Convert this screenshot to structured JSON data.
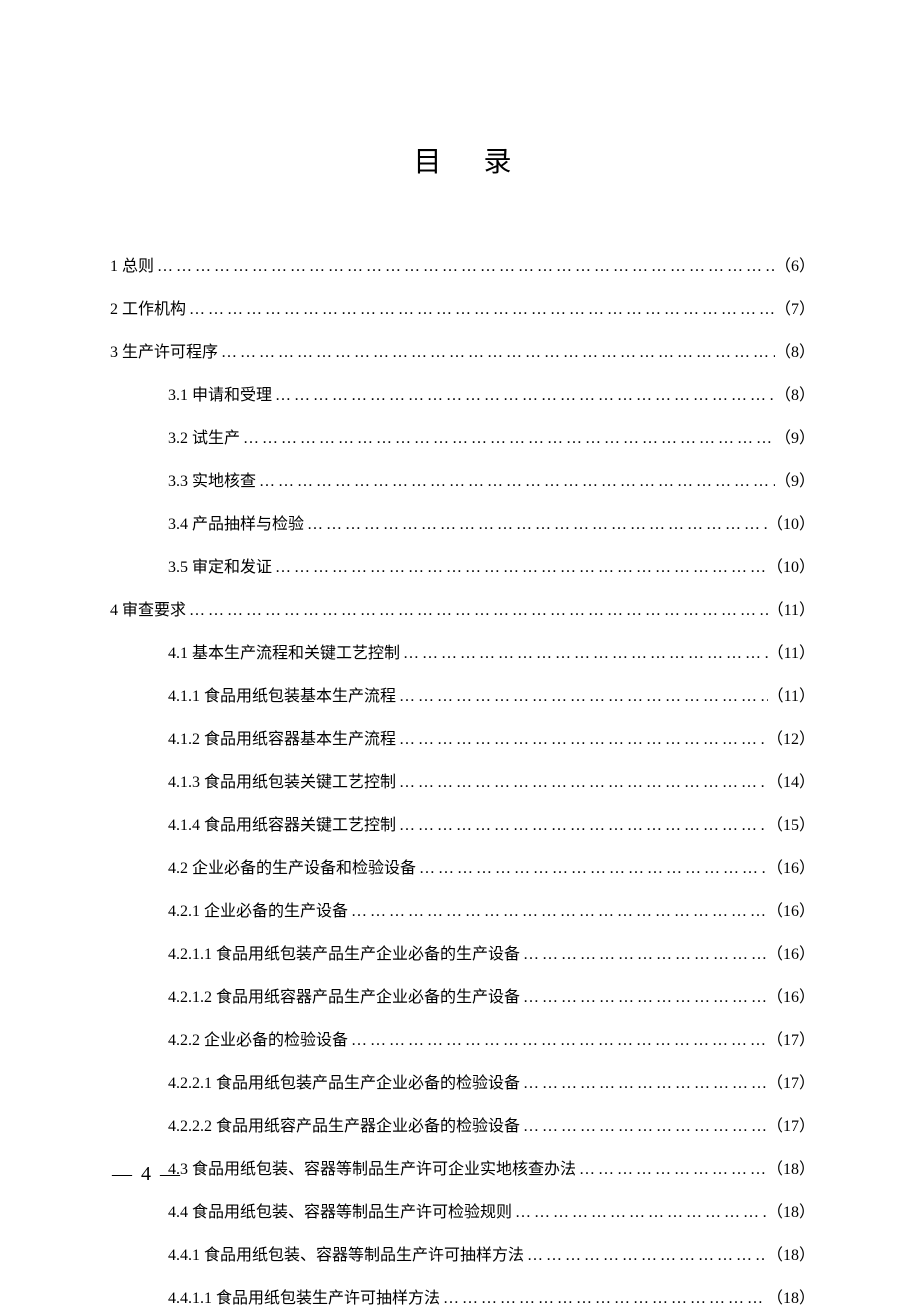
{
  "title": "目录",
  "toc": [
    {
      "num": "1",
      "label": "总则",
      "page": "6",
      "indent": false
    },
    {
      "num": "2",
      "label": "工作机构",
      "page": "7",
      "indent": false
    },
    {
      "num": "3",
      "label": "生产许可程序",
      "page": "8",
      "indent": false
    },
    {
      "num": "3.1",
      "label": "申请和受理",
      "page": "8",
      "indent": true
    },
    {
      "num": "3.2",
      "label": "试生产",
      "page": "9",
      "indent": true
    },
    {
      "num": "3.3",
      "label": "实地核查",
      "page": "9",
      "indent": true
    },
    {
      "num": "3.4",
      "label": "产品抽样与检验",
      "page": "10",
      "indent": true
    },
    {
      "num": "3.5",
      "label": "审定和发证",
      "page": "10",
      "indent": true
    },
    {
      "num": "4",
      "label": "审查要求",
      "page": "11",
      "indent": false
    },
    {
      "num": "4.1",
      "label": "基本生产流程和关键工艺控制",
      "page": "11",
      "indent": true
    },
    {
      "num": "4.1.1",
      "label": "食品用纸包装基本生产流程",
      "page": "11",
      "indent": true
    },
    {
      "num": "4.1.2",
      "label": "食品用纸容器基本生产流程",
      "page": "12",
      "indent": true
    },
    {
      "num": "4.1.3",
      "label": "食品用纸包装关键工艺控制",
      "page": "14",
      "indent": true
    },
    {
      "num": "4.1.4",
      "label": "食品用纸容器关键工艺控制",
      "page": "15",
      "indent": true
    },
    {
      "num": "4.2",
      "label": "企业必备的生产设备和检验设备",
      "page": "16",
      "indent": true
    },
    {
      "num": "4.2.1",
      "label": "企业必备的生产设备",
      "page": "16",
      "indent": true
    },
    {
      "num": "4.2.1.1",
      "label": "食品用纸包装产品生产企业必备的生产设备",
      "page": "16",
      "indent": true
    },
    {
      "num": "4.2.1.2",
      "label": "食品用纸容器产品生产企业必备的生产设备",
      "page": "16",
      "indent": true
    },
    {
      "num": "4.2.2",
      "label": "企业必备的检验设备",
      "page": "17",
      "indent": true
    },
    {
      "num": "4.2.2.1",
      "label": "食品用纸包装产品生产企业必备的检验设备",
      "page": "17",
      "indent": true
    },
    {
      "num": "4.2.2.2",
      "label": "食品用纸容产品生产器企业必备的检验设备",
      "page": "17",
      "indent": true
    },
    {
      "num": "4.3",
      "label": "食品用纸包装、容器等制品生产许可企业实地核查办法",
      "page": "18",
      "indent": true
    },
    {
      "num": "4.4",
      "label": "食品用纸包装、容器等制品生产许可检验规则",
      "page": "18",
      "indent": true
    },
    {
      "num": "4.4.1",
      "label": "食品用纸包装、容器等制品生产许可抽样方法",
      "page": "18",
      "indent": true
    },
    {
      "num": "4.4.1.1",
      "label": "食品用纸包装生产许可抽样方法",
      "page": "18",
      "indent": true
    }
  ],
  "page_number": "— 4 —"
}
